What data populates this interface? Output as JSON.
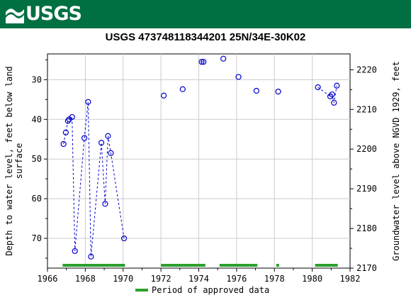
{
  "header": {
    "logo_text": "USGS",
    "brand_color": "#006f41"
  },
  "chart_data": {
    "type": "scatter",
    "title": "USGS 473748118344201 25N/34E-30K02",
    "ylabel_left": "Depth to water level, feet below land surface",
    "ylabel_left_lines": [
      "Depth to water level, feet below land",
      "surface"
    ],
    "ylabel_right": "Groundwater level above NGVD 1929, feet",
    "xlim": [
      1966,
      1982
    ],
    "ylim_depth": [
      77.5,
      23.5
    ],
    "ylim_elev": [
      2170,
      2224
    ],
    "x_ticks": [
      "1966",
      "1968",
      "1970",
      "1972",
      "1974",
      "1976",
      "1978",
      "1980",
      "1982"
    ],
    "y_ticks_left": [
      "30",
      "40",
      "50",
      "60",
      "70"
    ],
    "y_ticks_right": [
      "2220",
      "2210",
      "2200",
      "2190",
      "2180",
      "2170"
    ],
    "grid": true,
    "series": [
      {
        "marker": "circle",
        "line": "dashed",
        "color": "#0000cc",
        "points": [
          [
            1966.85,
            46.2
          ],
          [
            1966.97,
            43.3
          ],
          [
            1967.08,
            40.4
          ],
          [
            1967.15,
            40.0
          ],
          [
            1967.3,
            39.4
          ],
          [
            1967.45,
            73.2
          ],
          [
            1967.95,
            44.7
          ],
          [
            1968.15,
            35.6
          ],
          [
            1968.3,
            74.6
          ],
          [
            1968.85,
            45.9
          ],
          [
            1969.05,
            61.3
          ],
          [
            1969.2,
            44.2
          ],
          [
            1969.35,
            48.5
          ],
          [
            1970.05,
            70.0
          ],
          [
            1972.15,
            34.0
          ],
          [
            1973.15,
            32.4
          ],
          [
            1974.15,
            25.5
          ],
          [
            1974.25,
            25.5
          ],
          [
            1975.3,
            24.7
          ],
          [
            1976.1,
            29.3
          ],
          [
            1977.05,
            32.8
          ],
          [
            1978.2,
            33.0
          ],
          [
            1980.3,
            31.9
          ],
          [
            1980.95,
            34.2
          ],
          [
            1981.05,
            33.7
          ],
          [
            1981.15,
            35.8
          ],
          [
            1981.3,
            31.5
          ]
        ],
        "connected_segments": [
          [
            0,
            13
          ],
          [
            16,
            17
          ],
          [
            22,
            26
          ]
        ]
      }
    ],
    "approved_periods": [
      [
        1966.8,
        1970.1
      ],
      [
        1972.0,
        1974.35
      ],
      [
        1975.1,
        1977.1
      ],
      [
        1978.1,
        1978.25
      ],
      [
        1980.15,
        1981.35
      ]
    ],
    "approved_color": "#2ca02c",
    "legend": {
      "label": "Period of approved data",
      "placement": "bottom-center"
    }
  }
}
